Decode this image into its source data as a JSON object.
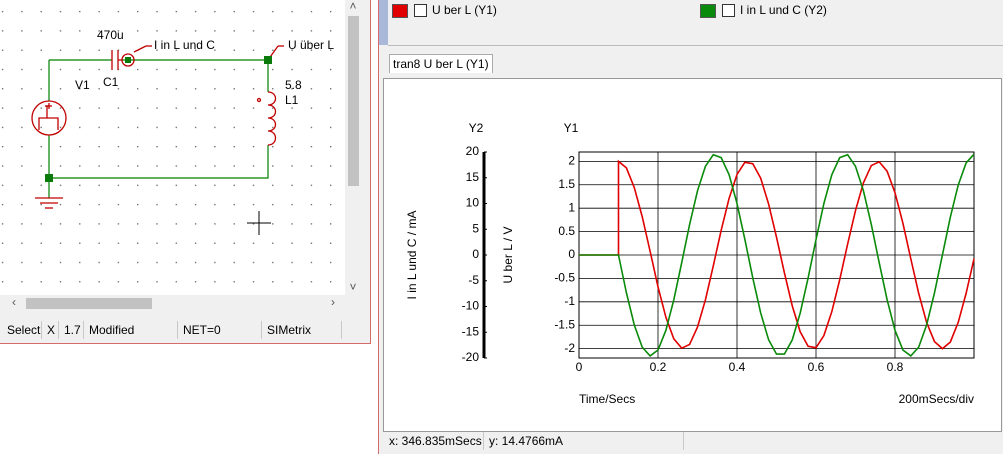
{
  "schematic_window": {
    "labels": {
      "cap_value": "470u",
      "cap_ref": "C1",
      "probe_current": "I in L und C",
      "probe_voltage": "U über L",
      "source_ref": "V1",
      "ind_value": "5.8",
      "ind_ref": "L1"
    },
    "status_bar": [
      "Select",
      "X",
      "1.7",
      "Modified",
      "NET=0",
      "SIMetrix"
    ]
  },
  "graph_window": {
    "tab": "tran8 U ber L (Y1)",
    "status_bar": [
      "x: 346.835mSecs",
      "y: 14.4766mA"
    ]
  },
  "chart_data": {
    "type": "line",
    "xlabel": "Time/Secs",
    "x_scale_label": "200mSecs/div",
    "y_axis_name": "Y1",
    "y2_axis_name": "Y2",
    "ylabel": "U ber L / V",
    "y2label": "I in L und C / mA",
    "x": [
      0,
      0.02,
      0.04,
      0.06,
      0.08,
      0.1,
      0.1,
      0.12,
      0.14,
      0.16,
      0.18,
      0.2,
      0.22,
      0.24,
      0.26,
      0.28,
      0.3,
      0.32,
      0.34,
      0.36,
      0.38,
      0.4,
      0.42,
      0.44,
      0.46,
      0.48,
      0.5,
      0.52,
      0.54,
      0.56,
      0.58,
      0.6,
      0.62,
      0.64,
      0.66,
      0.68,
      0.7,
      0.72,
      0.74,
      0.76,
      0.78,
      0.8,
      0.82,
      0.84,
      0.86,
      0.88,
      0.9,
      0.92,
      0.94,
      0.96,
      0.98,
      1.0
    ],
    "series": [
      {
        "name": "U ber L (Y1)",
        "color": "#e00000",
        "axis": "y",
        "values": [
          0,
          0,
          0,
          0,
          0,
          0,
          2,
          1.86,
          1.44,
          0.82,
          0.08,
          -0.68,
          -1.33,
          -1.79,
          -1.99,
          -1.91,
          -1.54,
          -0.96,
          -0.23,
          0.53,
          1.21,
          1.72,
          1.98,
          1.95,
          1.64,
          1.09,
          0.38,
          -0.38,
          -1.09,
          -1.64,
          -1.95,
          -1.98,
          -1.72,
          -1.21,
          -0.53,
          0.23,
          0.95,
          1.54,
          1.91,
          1.99,
          1.79,
          1.33,
          0.68,
          -0.08,
          -0.82,
          -1.44,
          -1.85,
          -2,
          -1.86,
          -1.44,
          -0.82,
          -0.08
        ]
      },
      {
        "name": "I in L und C (Y2)",
        "color": "#0a8a0a",
        "axis": "y2",
        "values": [
          0,
          0,
          0,
          0,
          0,
          0,
          0,
          -7.33,
          -13.59,
          -17.89,
          -19.59,
          -18.45,
          -14.63,
          -8.7,
          -1.5,
          5.91,
          12.47,
          17.22,
          19.47,
          18.9,
          15.59,
          10.02,
          3,
          -4.46,
          -11.27,
          -16.45,
          -19.24,
          -19.24,
          -16.46,
          -11.28,
          -4.48,
          2.98,
          10.01,
          15.58,
          18.9,
          19.47,
          17.22,
          12.49,
          5.93,
          -1.49,
          -8.68,
          -14.63,
          -18.44,
          -19.59,
          -17.89,
          -13.6,
          -7.34,
          0,
          7.31,
          13.57,
          17.88,
          19.58
        ]
      }
    ],
    "xlim": [
      0,
      1.0
    ],
    "xticks": [
      0,
      0.2,
      0.4,
      0.6,
      0.8
    ],
    "ylim": [
      -2.2,
      2.2
    ],
    "yticks": [
      2,
      1.5,
      1,
      0.5,
      0,
      -0.5,
      -1,
      -1.5,
      -2
    ],
    "y2lim": [
      -20,
      20
    ],
    "y2ticks": [
      20,
      15,
      10,
      5,
      0,
      -5,
      -10,
      -15,
      -20
    ],
    "grid": true
  }
}
